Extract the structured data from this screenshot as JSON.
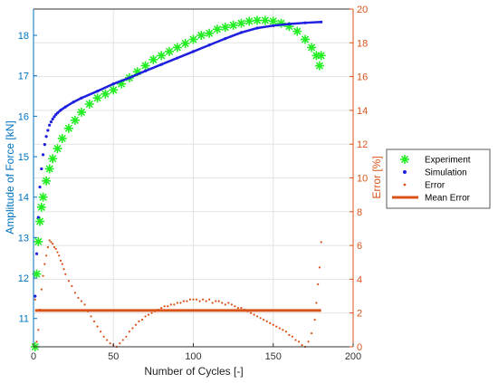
{
  "chart_data": {
    "type": "line",
    "title": "",
    "xlabel": "Number of Cycles [-]",
    "ylabel_left": "Amplitude of Force [kN]",
    "ylabel_right": "Error [%]",
    "xlim": [
      0,
      200
    ],
    "ylim_left": [
      10.3,
      18.65
    ],
    "ylim_right": [
      0,
      20
    ],
    "x_ticks": [
      0,
      50,
      100,
      150,
      200
    ],
    "y_left_ticks": [
      11,
      12,
      13,
      14,
      15,
      16,
      17,
      18
    ],
    "y_right_ticks": [
      0,
      2,
      4,
      6,
      8,
      10,
      12,
      14,
      16,
      18,
      20
    ],
    "grid": true,
    "legend_position": "right",
    "colors": {
      "experiment": "#22ee22",
      "simulation": "#1f1fe0",
      "error": "#d95319",
      "mean_error": "#d95319",
      "left_axis": "#0072bd",
      "right_axis": "#d95319",
      "grid": "#e3e3e3"
    },
    "series": [
      {
        "name": "Experiment",
        "axis": "left",
        "marker": "asterisk",
        "x": [
          1,
          2,
          3,
          4,
          5,
          6,
          8,
          10,
          12,
          15,
          18,
          22,
          26,
          30,
          35,
          40,
          45,
          50,
          55,
          60,
          65,
          70,
          75,
          80,
          85,
          90,
          95,
          100,
          105,
          110,
          115,
          120,
          125,
          130,
          135,
          140,
          145,
          150,
          155,
          160,
          165,
          170,
          174,
          177,
          179,
          180
        ],
        "y": [
          10.3,
          12.1,
          12.9,
          13.4,
          13.75,
          14.0,
          14.4,
          14.7,
          14.95,
          15.2,
          15.45,
          15.7,
          15.9,
          16.1,
          16.3,
          16.45,
          16.55,
          16.65,
          16.8,
          16.95,
          17.1,
          17.25,
          17.4,
          17.5,
          17.6,
          17.7,
          17.8,
          17.9,
          18.0,
          18.05,
          18.15,
          18.2,
          18.25,
          18.3,
          18.35,
          18.37,
          18.37,
          18.35,
          18.3,
          18.22,
          18.1,
          17.9,
          17.7,
          17.5,
          17.25,
          17.5
        ]
      },
      {
        "name": "Simulation",
        "axis": "left",
        "marker": "dot",
        "x": [
          1,
          2,
          3,
          4,
          5,
          6,
          7,
          8,
          9,
          10,
          11,
          12,
          13,
          14,
          15,
          17,
          20,
          25,
          30,
          40,
          50,
          60,
          70,
          80,
          90,
          100,
          110,
          120,
          130,
          140,
          150,
          160,
          170,
          180
        ],
        "y": [
          11.55,
          12.6,
          13.5,
          14.25,
          14.7,
          15.05,
          15.3,
          15.5,
          15.65,
          15.78,
          15.86,
          15.93,
          15.99,
          16.04,
          16.08,
          16.15,
          16.23,
          16.35,
          16.45,
          16.62,
          16.8,
          16.95,
          17.12,
          17.28,
          17.44,
          17.6,
          17.76,
          17.92,
          18.07,
          18.18,
          18.24,
          18.28,
          18.31,
          18.33
        ]
      },
      {
        "name": "Error",
        "axis": "right",
        "marker": "dot",
        "x": [
          1,
          2,
          3,
          4,
          5,
          6,
          7,
          8,
          9,
          10,
          11,
          12,
          13,
          14,
          15,
          16,
          17,
          18,
          19,
          20,
          22,
          24,
          26,
          28,
          30,
          32,
          34,
          36,
          38,
          40,
          42,
          44,
          46,
          48,
          50,
          52,
          54,
          56,
          58,
          60,
          62,
          64,
          66,
          68,
          70,
          72,
          74,
          76,
          78,
          80,
          82,
          84,
          86,
          88,
          90,
          92,
          94,
          96,
          98,
          100,
          102,
          104,
          106,
          108,
          110,
          112,
          114,
          116,
          118,
          120,
          122,
          124,
          126,
          128,
          130,
          132,
          134,
          136,
          138,
          140,
          142,
          144,
          146,
          148,
          150,
          152,
          154,
          156,
          158,
          160,
          162,
          164,
          166,
          168,
          170,
          172,
          174,
          176,
          177,
          178,
          179,
          180
        ],
        "y": [
          2.8,
          0.3,
          1.0,
          2.2,
          3.4,
          4.2,
          4.9,
          5.4,
          5.9,
          6.3,
          6.2,
          6.1,
          5.9,
          5.8,
          5.6,
          5.4,
          5.1,
          4.9,
          4.6,
          4.3,
          3.9,
          3.6,
          3.2,
          2.9,
          2.7,
          2.5,
          2.1,
          1.8,
          1.5,
          1.2,
          0.9,
          0.6,
          0.4,
          0.2,
          0.1,
          0.0,
          0.2,
          0.4,
          0.6,
          0.9,
          1.1,
          1.3,
          1.5,
          1.6,
          1.8,
          1.9,
          2.0,
          2.1,
          2.2,
          2.3,
          2.4,
          2.4,
          2.5,
          2.5,
          2.6,
          2.6,
          2.7,
          2.7,
          2.8,
          2.8,
          2.8,
          2.7,
          2.8,
          2.7,
          2.8,
          2.6,
          2.7,
          2.7,
          2.6,
          2.5,
          2.6,
          2.5,
          2.4,
          2.3,
          2.3,
          2.2,
          2.1,
          2.0,
          1.9,
          1.8,
          1.7,
          1.6,
          1.5,
          1.4,
          1.3,
          1.2,
          1.1,
          1.0,
          0.9,
          0.7,
          0.6,
          0.4,
          0.3,
          0.1,
          0.0,
          0.3,
          0.8,
          1.6,
          2.6,
          3.7,
          4.7,
          6.2
        ]
      },
      {
        "name": "Mean Error",
        "axis": "right",
        "marker": "line",
        "x": [
          1,
          180
        ],
        "y": [
          2.15,
          2.15
        ]
      }
    ]
  }
}
